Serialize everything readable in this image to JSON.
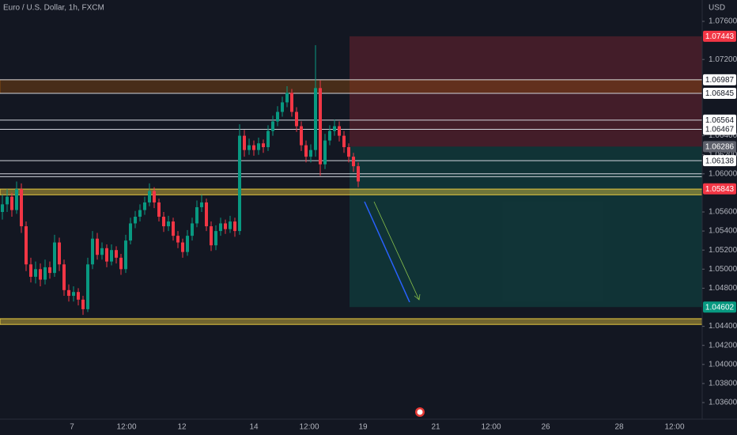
{
  "chart_data": {
    "type": "candlestick",
    "title": "Euro / U.S. Dollar, 1h, FXCM",
    "currency": "USD",
    "up_color": "#089981",
    "down_color": "#f23645",
    "ylim": [
      1.036,
      1.076
    ],
    "yticks": [
      {
        "value": 1.076,
        "label": "1.07600"
      },
      {
        "value": 1.072,
        "label": "1.07200"
      },
      {
        "value": 1.064,
        "label": "1.06400"
      },
      {
        "value": 1.062,
        "label": "1.06200"
      },
      {
        "value": 1.06,
        "label": "1.06000"
      },
      {
        "value": 1.056,
        "label": "1.05600"
      },
      {
        "value": 1.054,
        "label": "1.05400"
      },
      {
        "value": 1.052,
        "label": "1.05200"
      },
      {
        "value": 1.05,
        "label": "1.05000"
      },
      {
        "value": 1.048,
        "label": "1.04800"
      },
      {
        "value": 1.044,
        "label": "1.04400"
      },
      {
        "value": 1.042,
        "label": "1.04200"
      },
      {
        "value": 1.04,
        "label": "1.04000"
      },
      {
        "value": 1.038,
        "label": "1.03800"
      },
      {
        "value": 1.036,
        "label": "1.03600"
      }
    ],
    "xticks": [
      "7",
      "12:00",
      "12",
      "14",
      "12:00",
      "19",
      "21",
      "12:00",
      "26",
      "28",
      "12:00"
    ],
    "price_labels": [
      {
        "value": 1.07443,
        "color": "#f23645"
      },
      {
        "value": 1.06987,
        "color": "#ffffff"
      },
      {
        "value": 1.06845,
        "color": "#ffffff"
      },
      {
        "value": 1.06564,
        "color": "#ffffff"
      },
      {
        "value": 1.06467,
        "color": "#ffffff"
      },
      {
        "value": 1.06286,
        "color": "#5d606b"
      },
      {
        "value": 1.06138,
        "color": "#ffffff"
      },
      {
        "value": 1.05843,
        "color": "#f23645"
      },
      {
        "value": 1.04602,
        "color": "#089981"
      }
    ],
    "lines": [
      1.06987,
      1.06845,
      1.06564,
      1.06467,
      1.06138,
      1.06,
      1.0597
    ],
    "zones": [
      {
        "from": 1.06845,
        "to": 1.06987,
        "color": "#8a4a10"
      },
      {
        "from": 1.0578,
        "to": 1.0584,
        "color": "#e6c840"
      },
      {
        "from": 1.0442,
        "to": 1.0448,
        "color": "#e6c840"
      }
    ],
    "candles": [
      [
        1.056,
        1.0578,
        1.0552,
        1.0568
      ],
      [
        1.0568,
        1.0584,
        1.056,
        1.0576
      ],
      [
        1.0576,
        1.058,
        1.0555,
        1.0562
      ],
      [
        1.0562,
        1.0592,
        1.0558,
        1.0584
      ],
      [
        1.0584,
        1.059,
        1.0538,
        1.0545
      ],
      [
        1.0545,
        1.055,
        1.0498,
        1.0505
      ],
      [
        1.0505,
        1.0512,
        1.0486,
        1.0492
      ],
      [
        1.0492,
        1.0508,
        1.0485,
        1.05
      ],
      [
        1.05,
        1.0506,
        1.0482,
        1.0489
      ],
      [
        1.0489,
        1.051,
        1.0484,
        1.0502
      ],
      [
        1.0502,
        1.0508,
        1.049,
        1.0496
      ],
      [
        1.0496,
        1.0536,
        1.0492,
        1.0528
      ],
      [
        1.0528,
        1.0533,
        1.0498,
        1.0505
      ],
      [
        1.0505,
        1.051,
        1.0472,
        1.0478
      ],
      [
        1.0478,
        1.0484,
        1.0466,
        1.0472
      ],
      [
        1.0472,
        1.0482,
        1.0466,
        1.0476
      ],
      [
        1.0476,
        1.048,
        1.0462,
        1.0468
      ],
      [
        1.0468,
        1.0472,
        1.0452,
        1.0458
      ],
      [
        1.0458,
        1.0512,
        1.0455,
        1.0505
      ],
      [
        1.0505,
        1.054,
        1.05,
        1.0532
      ],
      [
        1.0532,
        1.0538,
        1.051,
        1.0515
      ],
      [
        1.0515,
        1.0528,
        1.051,
        1.0522
      ],
      [
        1.0522,
        1.0526,
        1.0502,
        1.0508
      ],
      [
        1.0508,
        1.0526,
        1.0504,
        1.052
      ],
      [
        1.052,
        1.0524,
        1.0506,
        1.0512
      ],
      [
        1.0512,
        1.0516,
        1.0494,
        1.05
      ],
      [
        1.05,
        1.0536,
        1.0496,
        1.053
      ],
      [
        1.053,
        1.0554,
        1.0526,
        1.0548
      ],
      [
        1.0548,
        1.0561,
        1.0543,
        1.0555
      ],
      [
        1.0555,
        1.0568,
        1.055,
        1.0562
      ],
      [
        1.0562,
        1.0576,
        1.0557,
        1.057
      ],
      [
        1.057,
        1.059,
        1.0566,
        1.0582
      ],
      [
        1.0582,
        1.0586,
        1.0564,
        1.057
      ],
      [
        1.057,
        1.0574,
        1.055,
        1.0555
      ],
      [
        1.0555,
        1.056,
        1.0539,
        1.0545
      ],
      [
        1.0545,
        1.0556,
        1.054,
        1.055
      ],
      [
        1.055,
        1.0554,
        1.053,
        1.0535
      ],
      [
        1.0535,
        1.054,
        1.0522,
        1.0528
      ],
      [
        1.0528,
        1.0532,
        1.0512,
        1.0518
      ],
      [
        1.0518,
        1.0541,
        1.0514,
        1.0535
      ],
      [
        1.0535,
        1.0554,
        1.053,
        1.0548
      ],
      [
        1.0548,
        1.0572,
        1.0544,
        1.0565
      ],
      [
        1.0565,
        1.0578,
        1.056,
        1.057
      ],
      [
        1.057,
        1.0574,
        1.054,
        1.0545
      ],
      [
        1.0545,
        1.055,
        1.0519,
        1.0525
      ],
      [
        1.0525,
        1.0546,
        1.052,
        1.054
      ],
      [
        1.054,
        1.0554,
        1.0535,
        1.0548
      ],
      [
        1.0548,
        1.0552,
        1.0537,
        1.0542
      ],
      [
        1.0542,
        1.0556,
        1.0538,
        1.055
      ],
      [
        1.055,
        1.0554,
        1.0534,
        1.054
      ],
      [
        1.054,
        1.0652,
        1.0536,
        1.064
      ],
      [
        1.064,
        1.0646,
        1.0618,
        1.0625
      ],
      [
        1.0625,
        1.0637,
        1.062,
        1.063
      ],
      [
        1.063,
        1.0635,
        1.0619,
        1.0625
      ],
      [
        1.0625,
        1.0638,
        1.062,
        1.0632
      ],
      [
        1.0632,
        1.0636,
        1.0622,
        1.0628
      ],
      [
        1.0628,
        1.0651,
        1.0624,
        1.0645
      ],
      [
        1.0645,
        1.0661,
        1.064,
        1.0655
      ],
      [
        1.0655,
        1.0671,
        1.065,
        1.0665
      ],
      [
        1.0665,
        1.0681,
        1.066,
        1.0675
      ],
      [
        1.0675,
        1.0692,
        1.067,
        1.0685
      ],
      [
        1.0685,
        1.0689,
        1.066,
        1.0665
      ],
      [
        1.0665,
        1.067,
        1.0644,
        1.065
      ],
      [
        1.065,
        1.0655,
        1.0624,
        1.063
      ],
      [
        1.063,
        1.0635,
        1.0612,
        1.0618
      ],
      [
        1.0618,
        1.0631,
        1.0612,
        1.0625
      ],
      [
        1.0625,
        1.0735,
        1.0618,
        1.069
      ],
      [
        1.069,
        1.0698,
        1.0598,
        1.061
      ],
      [
        1.061,
        1.0642,
        1.0605,
        1.0635
      ],
      [
        1.0635,
        1.0651,
        1.063,
        1.0645
      ],
      [
        1.0645,
        1.0657,
        1.064,
        1.065
      ],
      [
        1.065,
        1.0655,
        1.0634,
        1.064
      ],
      [
        1.064,
        1.0645,
        1.0622,
        1.0628
      ],
      [
        1.0628,
        1.0632,
        1.0612,
        1.0618
      ],
      [
        1.0618,
        1.0622,
        1.0602,
        1.0608
      ],
      [
        1.0608,
        1.0612,
        1.0586,
        1.0592
      ]
    ]
  }
}
